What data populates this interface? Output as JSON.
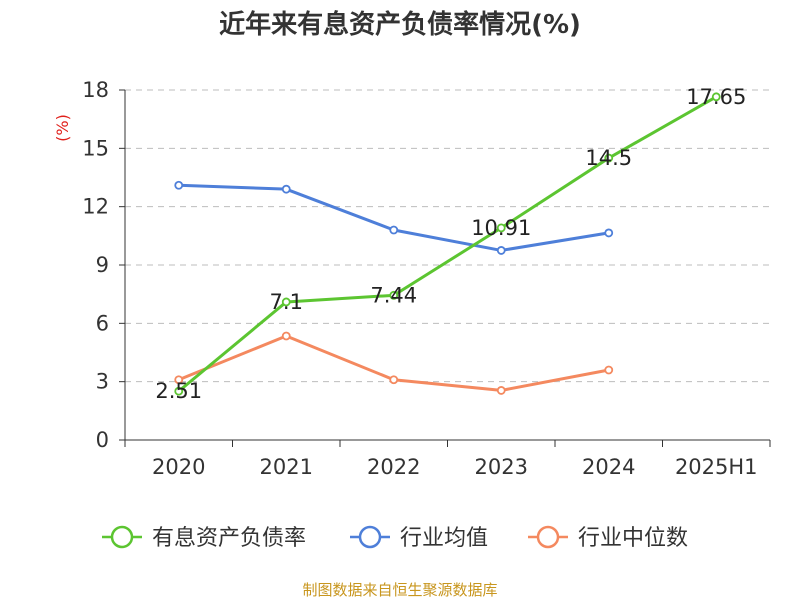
{
  "chart_data": {
    "type": "line",
    "title": "近年来有息资产负债率情况(%)",
    "ylabel": "(%)",
    "xlabel": "",
    "categories": [
      "2020",
      "2021",
      "2022",
      "2023",
      "2024",
      "2025H1"
    ],
    "ylim": [
      0,
      18
    ],
    "yticks": [
      "0",
      "3",
      "6",
      "9",
      "12",
      "15",
      "18"
    ],
    "grid": true,
    "legend_position": "bottom",
    "series": [
      {
        "name": "有息资产负债率",
        "color": "#5cc531",
        "values": [
          2.51,
          7.1,
          7.44,
          10.91,
          14.5,
          17.65
        ],
        "labels": [
          "2.51",
          "7.1",
          "7.44",
          "10.91",
          "14.5",
          "17.65"
        ]
      },
      {
        "name": "行业均值",
        "color": "#4e7fd9",
        "values": [
          13.1,
          12.9,
          10.8,
          9.75,
          10.65,
          null
        ]
      },
      {
        "name": "行业中位数",
        "color": "#f4895f",
        "values": [
          3.1,
          5.35,
          3.1,
          2.55,
          3.6,
          null
        ]
      }
    ]
  },
  "footer": {
    "source": "制图数据来自恒生聚源数据库"
  }
}
